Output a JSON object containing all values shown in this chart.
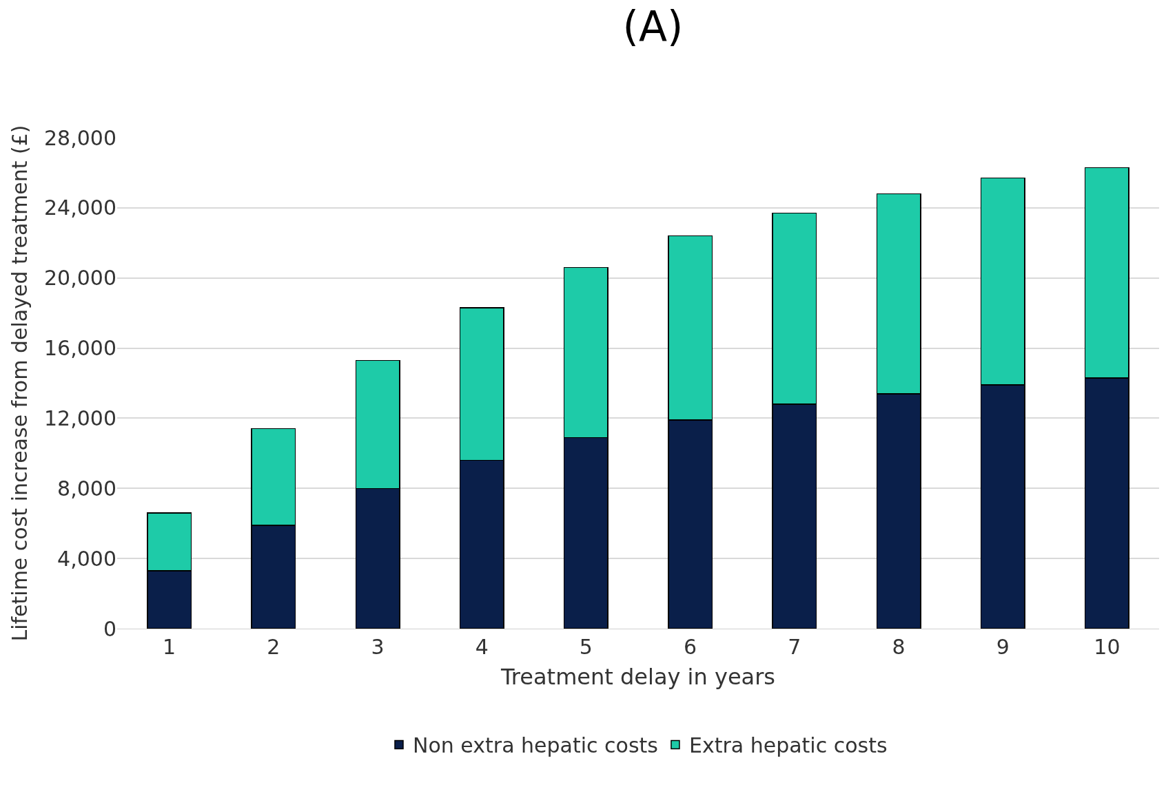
{
  "chart_data": {
    "type": "bar",
    "title": "(A)",
    "xlabel": "Treatment delay in years",
    "ylabel": "Lifetime cost increase from delayed treatment (£)",
    "categories": [
      "1",
      "2",
      "3",
      "4",
      "5",
      "6",
      "7",
      "8",
      "9",
      "10"
    ],
    "stacked": true,
    "series": [
      {
        "name": "Non extra hepatic costs",
        "color": "#0a1f4a",
        "values": [
          3300,
          5900,
          8000,
          9600,
          10900,
          11900,
          12800,
          13400,
          13900,
          14300
        ]
      },
      {
        "name": "Extra hepatic costs",
        "color": "#1ecba8",
        "values": [
          3300,
          5500,
          7300,
          8700,
          9700,
          10500,
          10900,
          11400,
          11800,
          12000
        ]
      }
    ],
    "ylim": [
      0,
      28000
    ],
    "yticks": [
      {
        "value": 0,
        "label": "0"
      },
      {
        "value": 4000,
        "label": "4,000"
      },
      {
        "value": 8000,
        "label": "8,000"
      },
      {
        "value": 12000,
        "label": "12,000"
      },
      {
        "value": 16000,
        "label": "16,000"
      },
      {
        "value": 20000,
        "label": "20,000"
      },
      {
        "value": 24000,
        "label": "24,000"
      },
      {
        "value": 28000,
        "label": "28,000"
      }
    ],
    "grid": "y",
    "legend": "bottom"
  }
}
